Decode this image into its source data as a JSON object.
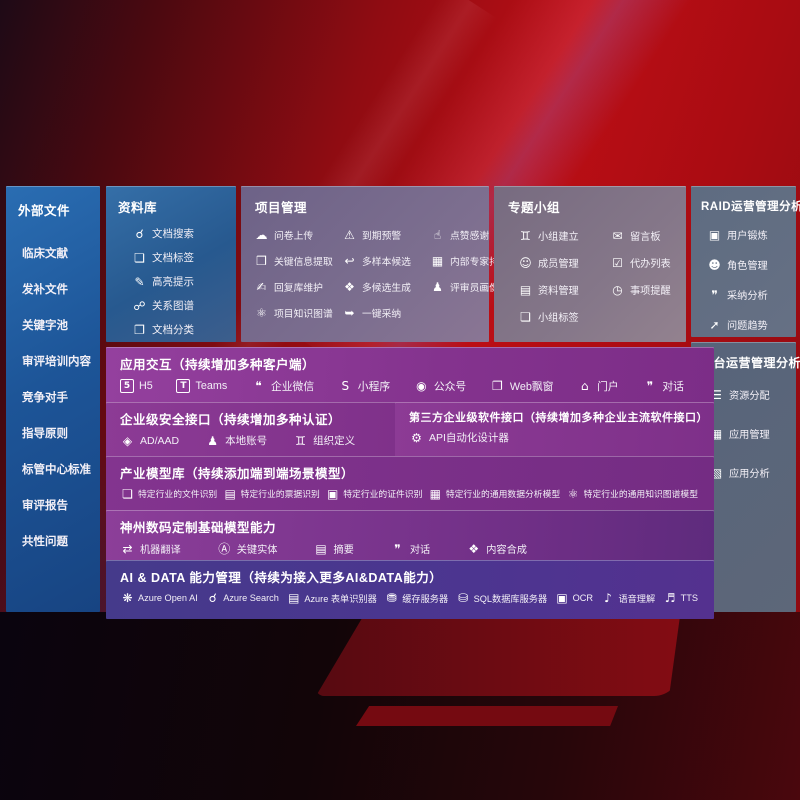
{
  "colors": {
    "panel_blue": "#1f5ca0",
    "panel_gray_purple": "#7c6e8f",
    "panel_mauve": "#857789",
    "panel_slate": "#5e6c81",
    "panel_purple": "#84338e",
    "panel_indigo": "#4c3590",
    "bg_red": "#bb0e15"
  },
  "panels": {
    "external_files": {
      "title": "外部文件",
      "items": [
        {
          "label": "临床文献"
        },
        {
          "label": "发补文件"
        },
        {
          "label": "关键字池"
        },
        {
          "label": "审评培训内容"
        },
        {
          "label": "竞争对手"
        },
        {
          "label": "指导原则"
        },
        {
          "label": "标管中心标准"
        },
        {
          "label": "审评报告"
        },
        {
          "label": "共性问题"
        }
      ]
    },
    "repository": {
      "title": "资料库",
      "items": [
        {
          "icon": "doc-search-icon",
          "glyph": "☌",
          "label": "文档搜索"
        },
        {
          "icon": "doc-tag-icon",
          "glyph": "❏",
          "label": "文档标签"
        },
        {
          "icon": "highlighter-icon",
          "glyph": "✎",
          "label": "高亮提示"
        },
        {
          "icon": "relation-graph-icon",
          "glyph": "☍",
          "label": "关系图谱"
        },
        {
          "icon": "doc-classify-icon",
          "glyph": "❐",
          "label": "文档分类"
        }
      ]
    },
    "project_management": {
      "title": "项目管理",
      "items": [
        {
          "icon": "cloud-upload-icon",
          "glyph": "☁",
          "label": "问卷上传"
        },
        {
          "icon": "alarm-icon",
          "glyph": "⚠",
          "label": "到期预警"
        },
        {
          "icon": "thumbs-up-icon",
          "glyph": "☝",
          "label": "点赞感谢"
        },
        {
          "icon": "info-extract-icon",
          "glyph": "❒",
          "label": "关键信息提取"
        },
        {
          "icon": "sample-candidate-icon",
          "glyph": "↩",
          "label": "多样本候选"
        },
        {
          "icon": "expert-ranking-icon",
          "glyph": "▦",
          "label": "内部专家排名"
        },
        {
          "icon": "reply-maintain-icon",
          "glyph": "✍",
          "label": "回复库维护"
        },
        {
          "icon": "multi-generate-icon",
          "glyph": "❖",
          "label": "多候选生成"
        },
        {
          "icon": "reviewer-profile-icon",
          "glyph": "♟",
          "label": "评审员画像"
        },
        {
          "icon": "knowledge-graph-icon",
          "glyph": "⚛",
          "label": "项目知识图谱"
        },
        {
          "icon": "one-click-adopt-icon",
          "glyph": "➥",
          "label": "一键采纳"
        }
      ]
    },
    "topic_groups": {
      "title": "专题小组",
      "items": [
        {
          "icon": "group-create-icon",
          "glyph": "♊",
          "label": "小组建立"
        },
        {
          "icon": "message-board-icon",
          "glyph": "✉",
          "label": "留言板"
        },
        {
          "icon": "member-manage-icon",
          "glyph": "☺",
          "label": "成员管理"
        },
        {
          "icon": "todo-list-icon",
          "glyph": "☑",
          "label": "代办列表"
        },
        {
          "icon": "material-manage-icon",
          "glyph": "▤",
          "label": "资料管理"
        },
        {
          "icon": "reminder-bell-icon",
          "glyph": "◷",
          "label": "事项提醒"
        },
        {
          "icon": "group-tag-icon",
          "glyph": "❏",
          "label": "小组标签"
        }
      ]
    },
    "raid_analysis": {
      "title": "RAID运营管理分析",
      "items": [
        {
          "icon": "user-card-icon",
          "glyph": "▣",
          "label": "用户锻炼"
        },
        {
          "icon": "role-manage-icon",
          "glyph": "☻",
          "label": "角色管理"
        },
        {
          "icon": "adoption-analysis-icon",
          "glyph": "❞",
          "label": "采纳分析"
        },
        {
          "icon": "trend-chart-icon",
          "glyph": "➚",
          "label": "问题趋势"
        }
      ]
    },
    "platform_analysis": {
      "title": "平台运营管理分析",
      "items": [
        {
          "icon": "resource-allocation-icon",
          "glyph": "☰",
          "label": "资源分配"
        },
        {
          "icon": "app-manage-icon",
          "glyph": "▦",
          "label": "应用管理"
        },
        {
          "icon": "app-analysis-icon",
          "glyph": "▧",
          "label": "应用分析"
        }
      ]
    },
    "app_interaction": {
      "title": "应用交互（持续增加多种客户端）",
      "items": [
        {
          "icon": "h5-icon",
          "glyph": "5",
          "label": "H5"
        },
        {
          "icon": "teams-icon",
          "glyph": "T",
          "label": "Teams"
        },
        {
          "icon": "wecom-icon",
          "glyph": "❝",
          "label": "企业微信"
        },
        {
          "icon": "miniprogram-icon",
          "glyph": "S",
          "label": "小程序"
        },
        {
          "icon": "official-account-icon",
          "glyph": "◉",
          "label": "公众号"
        },
        {
          "icon": "web-popup-icon",
          "glyph": "❐",
          "label": "Web飘窗"
        },
        {
          "icon": "portal-icon",
          "glyph": "⌂",
          "label": "门户"
        },
        {
          "icon": "chat-icon",
          "glyph": "❞",
          "label": "对话"
        }
      ]
    },
    "security_interface": {
      "title": "企业级安全接口（持续增加多种认证）",
      "items": [
        {
          "icon": "ad-aad-icon",
          "glyph": "◈",
          "label": "AD/AAD"
        },
        {
          "icon": "local-account-icon",
          "glyph": "♟",
          "label": "本地账号"
        },
        {
          "icon": "org-define-icon",
          "glyph": "♊",
          "label": "组织定义"
        }
      ]
    },
    "third_party_interface": {
      "title": "第三方企业级软件接口（持续增加多种企业主流软件接口）",
      "items": [
        {
          "icon": "api-designer-icon",
          "glyph": "⚙",
          "label": "API自动化设计器"
        }
      ]
    },
    "industry_models": {
      "title": "产业模型库（持续添加端到端场景模型）",
      "items": [
        {
          "icon": "file-recognition-icon",
          "glyph": "❏",
          "label": "特定行业的文件识别"
        },
        {
          "icon": "receipt-recognition-icon",
          "glyph": "▤",
          "label": "特定行业的票据识别"
        },
        {
          "icon": "id-recognition-icon",
          "glyph": "▣",
          "label": "特定行业的证件识别"
        },
        {
          "icon": "data-analysis-model-icon",
          "glyph": "▦",
          "label": "特定行业的通用数据分析模型"
        },
        {
          "icon": "knowledge-graph-model-icon",
          "glyph": "⚛",
          "label": "特定行业的通用知识图谱模型"
        }
      ]
    },
    "custom_models": {
      "title": "神州数码定制基础模型能力",
      "items": [
        {
          "icon": "machine-translate-icon",
          "glyph": "⇄",
          "label": "机器翻译"
        },
        {
          "icon": "key-entity-icon",
          "glyph": "Ⓐ",
          "label": "关键实体"
        },
        {
          "icon": "summary-icon",
          "glyph": "▤",
          "label": "摘要"
        },
        {
          "icon": "dialog-icon",
          "glyph": "❞",
          "label": "对话"
        },
        {
          "icon": "content-synthesis-icon",
          "glyph": "❖",
          "label": "内容合成"
        }
      ]
    },
    "ai_data": {
      "title": "AI & DATA 能力管理（持续为接入更多AI&DATA能力）",
      "items": [
        {
          "icon": "openai-icon",
          "glyph": "❋",
          "label": "Azure Open AI"
        },
        {
          "icon": "azure-search-icon",
          "glyph": "☌",
          "label": "Azure Search"
        },
        {
          "icon": "form-recognizer-icon",
          "glyph": "▤",
          "label": "Azure 表单识别器"
        },
        {
          "icon": "cache-server-icon",
          "glyph": "⛃",
          "label": "缓存服务器"
        },
        {
          "icon": "sql-server-icon",
          "glyph": "⛁",
          "label": "SQL数据库服务器"
        },
        {
          "icon": "ocr-icon",
          "glyph": "▣",
          "label": "OCR"
        },
        {
          "icon": "speech-understanding-icon",
          "glyph": "♪",
          "label": "语音理解"
        },
        {
          "icon": "tts-icon",
          "glyph": "♬",
          "label": "TTS"
        }
      ]
    }
  }
}
